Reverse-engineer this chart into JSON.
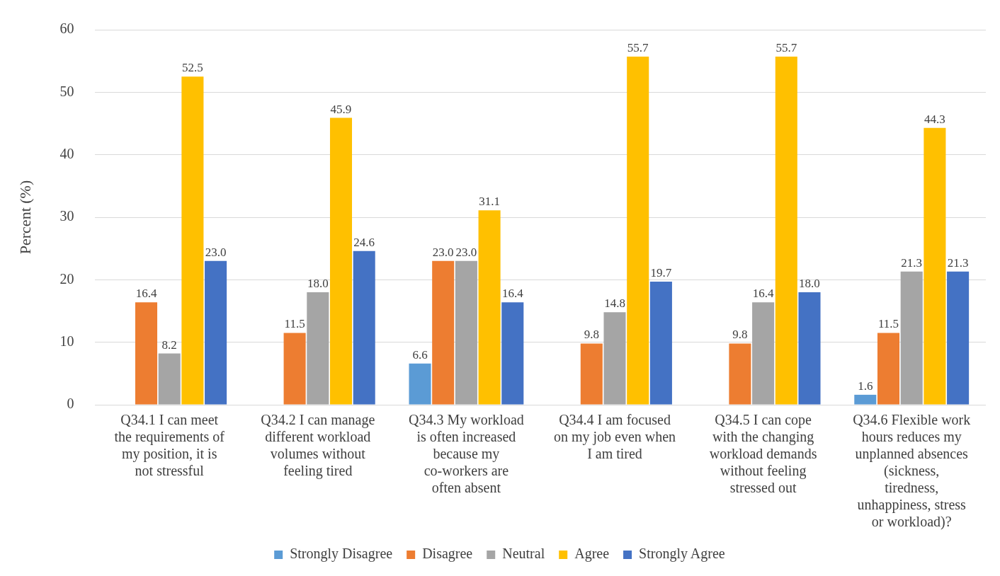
{
  "chart_data": {
    "type": "bar",
    "ylabel": "Percent (%)",
    "categories": [
      "Q34.1 I can meet the requirements of my position, it is not stressful",
      "Q34.2 I can manage different workload volumes without feeling tired",
      "Q34.3 My workload is often increased because my co-workers are often absent",
      "Q34.4 I am focused on my job even when I am tired",
      "Q34.5 I can cope with the changing workload demands without feeling stressed out",
      "Q34.6 Flexible work hours reduces my unplanned absences (sickness, tiredness, unhappiness, stress or workload)?"
    ],
    "series": [
      {
        "name": "Strongly Disagree",
        "color": "#5b9bd5",
        "values": [
          null,
          null,
          6.6,
          null,
          null,
          1.6
        ],
        "value_labels": [
          null,
          null,
          "6.6",
          null,
          null,
          "1.6"
        ]
      },
      {
        "name": "Disagree",
        "color": "#ed7d31",
        "values": [
          16.4,
          11.5,
          23.0,
          9.8,
          9.8,
          11.5
        ],
        "value_labels": [
          "16.4",
          "11.5",
          "23.0",
          "9.8",
          "9.8",
          "11.5"
        ]
      },
      {
        "name": "Neutral",
        "color": "#a5a5a5",
        "values": [
          8.2,
          18.0,
          23.0,
          14.8,
          16.4,
          21.3
        ],
        "value_labels": [
          "8.2",
          "18.0",
          "23.0",
          "14.8",
          "16.4",
          "21.3"
        ]
      },
      {
        "name": "Agree",
        "color": "#ffc000",
        "values": [
          52.5,
          45.9,
          31.1,
          55.7,
          55.7,
          44.3
        ],
        "value_labels": [
          "52.5",
          "45.9",
          "31.1",
          "55.7",
          "55.7",
          "44.3"
        ]
      },
      {
        "name": "Strongly Agree",
        "color": "#4472c4",
        "values": [
          23.0,
          24.6,
          16.4,
          19.7,
          18.0,
          21.3
        ],
        "value_labels": [
          "23.0",
          "24.6",
          "16.4",
          "19.7",
          "18.0",
          "21.3"
        ]
      }
    ],
    "ylim": [
      0,
      60
    ],
    "yticks": [
      0,
      10,
      20,
      30,
      40,
      50,
      60
    ],
    "grid": "y",
    "legend": "bottom"
  }
}
